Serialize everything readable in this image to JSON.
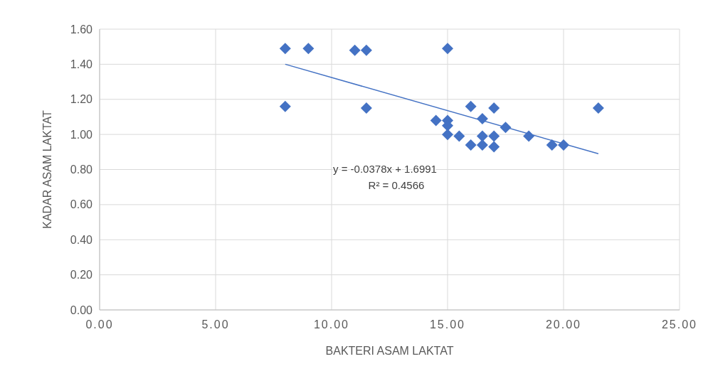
{
  "chart_data": {
    "type": "scatter",
    "xlabel": "BAKTERI ASAM LAKTAT",
    "ylabel": "KADAR ASAM LAKTAT",
    "xlim": [
      0,
      25
    ],
    "xticks": [
      {
        "value": 0,
        "label": "0.00"
      },
      {
        "value": 5,
        "label": "5.00"
      },
      {
        "value": 10,
        "label": "10.00"
      },
      {
        "value": 15,
        "label": "15.00"
      },
      {
        "value": 20,
        "label": "20.00"
      },
      {
        "value": 25,
        "label": "25.00"
      }
    ],
    "ylim": [
      0,
      1.6
    ],
    "yticks": [
      {
        "value": 0,
        "label": "0.00"
      },
      {
        "value": 0.2,
        "label": "0.20"
      },
      {
        "value": 0.4,
        "label": "0.40"
      },
      {
        "value": 0.6,
        "label": "0.60"
      },
      {
        "value": 0.8,
        "label": "0.80"
      },
      {
        "value": 1,
        "label": "1.00"
      },
      {
        "value": 1.2,
        "label": "1.20"
      },
      {
        "value": 1.4,
        "label": "1.40"
      },
      {
        "value": 1.6,
        "label": "1.60"
      }
    ],
    "grid": true,
    "series": [
      {
        "type": "scatter",
        "marker": "diamond",
        "color": "#4472c4",
        "x": [
          8,
          9,
          11,
          11.5,
          15,
          8,
          11.5,
          14.5,
          15,
          15,
          15,
          15.5,
          16,
          16.5,
          17,
          17.5,
          16,
          16.5,
          16.5,
          17,
          17,
          18.5,
          19.5,
          20,
          21.5
        ],
        "values": [
          1.49,
          1.49,
          1.48,
          1.48,
          1.49,
          1.16,
          1.15,
          1.08,
          1.08,
          1.05,
          1.0,
          0.99,
          1.16,
          1.09,
          1.15,
          1.04,
          0.94,
          0.99,
          0.94,
          0.99,
          0.93,
          0.99,
          0.94,
          0.94,
          1.15
        ]
      },
      {
        "type": "line",
        "color": "#4472c4",
        "x": [
          8,
          21.5
        ],
        "values": [
          1.4,
          0.89
        ]
      }
    ],
    "annotations": [
      "y = -0.0378x + 1.6991",
      "R² = 0.4566"
    ]
  }
}
